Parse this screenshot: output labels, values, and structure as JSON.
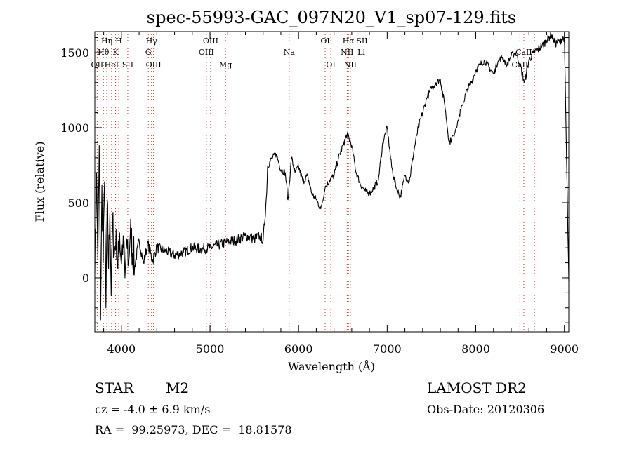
{
  "chart_data": {
    "type": "line",
    "title": "spec-55993-GAC_097N20_V1_sp07-129.fits",
    "xlabel": "Wavelength (Å)",
    "ylabel": "Flux (relative)",
    "xlim": [
      3700,
      9050
    ],
    "ylim": [
      -360,
      1640
    ],
    "grid": false,
    "x_ticks": [
      4000,
      5000,
      6000,
      7000,
      8000,
      9000
    ],
    "x_tick_labels": [
      "4000",
      "5000",
      "6000",
      "7000",
      "8000",
      "9000"
    ],
    "y_ticks": [
      0,
      500,
      1000,
      1500
    ],
    "y_tick_labels": [
      "0",
      "500",
      "1000",
      "1500"
    ],
    "series": [
      {
        "anchors": [
          [
            3700,
            30
          ],
          [
            3720,
            700
          ],
          [
            3735,
            120
          ],
          [
            3750,
            880
          ],
          [
            3765,
            -280
          ],
          [
            3780,
            620
          ],
          [
            3795,
            100
          ],
          [
            3810,
            640
          ],
          [
            3825,
            -200
          ],
          [
            3840,
            520
          ],
          [
            3855,
            60
          ],
          [
            3870,
            430
          ],
          [
            3885,
            -120
          ],
          [
            3900,
            380
          ],
          [
            3920,
            150
          ],
          [
            3940,
            320
          ],
          [
            3960,
            60
          ],
          [
            3980,
            300
          ],
          [
            4000,
            90
          ],
          [
            4020,
            280
          ],
          [
            4040,
            0
          ],
          [
            4060,
            260
          ],
          [
            4080,
            120
          ],
          [
            4100,
            300
          ],
          [
            4150,
            80
          ],
          [
            4200,
            250
          ],
          [
            4250,
            100
          ],
          [
            4300,
            230
          ],
          [
            4350,
            110
          ],
          [
            4400,
            200
          ],
          [
            4500,
            180
          ],
          [
            4600,
            150
          ],
          [
            4700,
            170
          ],
          [
            4800,
            200
          ],
          [
            4900,
            190
          ],
          [
            5000,
            200
          ],
          [
            5100,
            220
          ],
          [
            5200,
            240
          ],
          [
            5300,
            250
          ],
          [
            5400,
            280
          ],
          [
            5500,
            260
          ],
          [
            5560,
            280
          ],
          [
            5600,
            250
          ],
          [
            5640,
            560
          ],
          [
            5650,
            740
          ],
          [
            5700,
            800
          ],
          [
            5750,
            820
          ],
          [
            5800,
            720
          ],
          [
            5850,
            700
          ],
          [
            5880,
            520
          ],
          [
            5920,
            800
          ],
          [
            5960,
            700
          ],
          [
            6000,
            740
          ],
          [
            6050,
            640
          ],
          [
            6100,
            680
          ],
          [
            6150,
            560
          ],
          [
            6200,
            520
          ],
          [
            6250,
            460
          ],
          [
            6300,
            600
          ],
          [
            6350,
            650
          ],
          [
            6400,
            680
          ],
          [
            6450,
            800
          ],
          [
            6500,
            880
          ],
          [
            6550,
            960
          ],
          [
            6600,
            880
          ],
          [
            6650,
            700
          ],
          [
            6700,
            620
          ],
          [
            6750,
            580
          ],
          [
            6800,
            560
          ],
          [
            6850,
            600
          ],
          [
            6900,
            650
          ],
          [
            6950,
            900
          ],
          [
            7000,
            1000
          ],
          [
            7050,
            740
          ],
          [
            7100,
            600
          ],
          [
            7150,
            540
          ],
          [
            7200,
            680
          ],
          [
            7250,
            640
          ],
          [
            7300,
            840
          ],
          [
            7350,
            1000
          ],
          [
            7400,
            1100
          ],
          [
            7450,
            1200
          ],
          [
            7500,
            1260
          ],
          [
            7550,
            1300
          ],
          [
            7600,
            1320
          ],
          [
            7650,
            1150
          ],
          [
            7700,
            900
          ],
          [
            7750,
            950
          ],
          [
            7800,
            1050
          ],
          [
            7850,
            1150
          ],
          [
            7900,
            1250
          ],
          [
            7950,
            1300
          ],
          [
            8000,
            1380
          ],
          [
            8050,
            1420
          ],
          [
            8100,
            1450
          ],
          [
            8150,
            1400
          ],
          [
            8200,
            1360
          ],
          [
            8250,
            1440
          ],
          [
            8300,
            1470
          ],
          [
            8350,
            1420
          ],
          [
            8400,
            1480
          ],
          [
            8450,
            1500
          ],
          [
            8500,
            1420
          ],
          [
            8550,
            1300
          ],
          [
            8600,
            1450
          ],
          [
            8650,
            1500
          ],
          [
            8700,
            1520
          ],
          [
            8750,
            1550
          ],
          [
            8800,
            1580
          ],
          [
            8850,
            1620
          ],
          [
            8900,
            1560
          ],
          [
            8950,
            1580
          ],
          [
            9000,
            1600
          ],
          [
            9050,
            -20
          ]
        ]
      }
    ],
    "line_labels": [
      {
        "text": "Hη",
        "wave": 3835,
        "row": 0
      },
      {
        "text": "H",
        "wave": 3970,
        "row": 0
      },
      {
        "text": "Hθ",
        "wave": 3797,
        "row": 1
      },
      {
        "text": "K",
        "wave": 3934,
        "row": 1
      },
      {
        "text": "OII",
        "wave": 3727,
        "row": 2
      },
      {
        "text": "HeI",
        "wave": 3889,
        "row": 2
      },
      {
        "text": "SII",
        "wave": 4072,
        "row": 2
      },
      {
        "text": "Hγ",
        "wave": 4340,
        "row": 0
      },
      {
        "text": "G",
        "wave": 4304,
        "row": 1
      },
      {
        "text": "OIII",
        "wave": 4363,
        "row": 2
      },
      {
        "text": "OIII",
        "wave": 5007,
        "row": 0
      },
      {
        "text": "OIII",
        "wave": 4959,
        "row": 1
      },
      {
        "text": "Mg",
        "wave": 5175,
        "row": 2
      },
      {
        "text": "Na",
        "wave": 5894,
        "row": 1
      },
      {
        "text": "OI",
        "wave": 6300,
        "row": 0
      },
      {
        "text": "OI",
        "wave": 6364,
        "row": 2
      },
      {
        "text": "Hα",
        "wave": 6563,
        "row": 0
      },
      {
        "text": "SII",
        "wave": 6716,
        "row": 0
      },
      {
        "text": "NII",
        "wave": 6548,
        "row": 1
      },
      {
        "text": "Li",
        "wave": 6708,
        "row": 1
      },
      {
        "text": "NII",
        "wave": 6584,
        "row": 2
      },
      {
        "text": "CaII",
        "wave": 8542,
        "row": 1
      },
      {
        "text": "CaII",
        "wave": 8498,
        "row": 2
      }
    ],
    "line_markers": [
      3727,
      3797,
      3835,
      3889,
      3934,
      3970,
      4072,
      4304,
      4340,
      4363,
      4959,
      5007,
      5175,
      5894,
      6300,
      6364,
      6548,
      6563,
      6584,
      6716,
      8498,
      8542,
      8662
    ]
  },
  "info": {
    "object_class": "STAR",
    "subclass": "M2",
    "survey": "LAMOST DR2",
    "redshift": "cz = -4.0 ± 6.9 km/s",
    "obs_date": "Obs-Date: 20120306",
    "coords": "RA =  99.25973, DEC =  18.81578"
  },
  "colors": {
    "spectrum": "#000000",
    "markers": "#c0392b",
    "axes": "#000000"
  }
}
